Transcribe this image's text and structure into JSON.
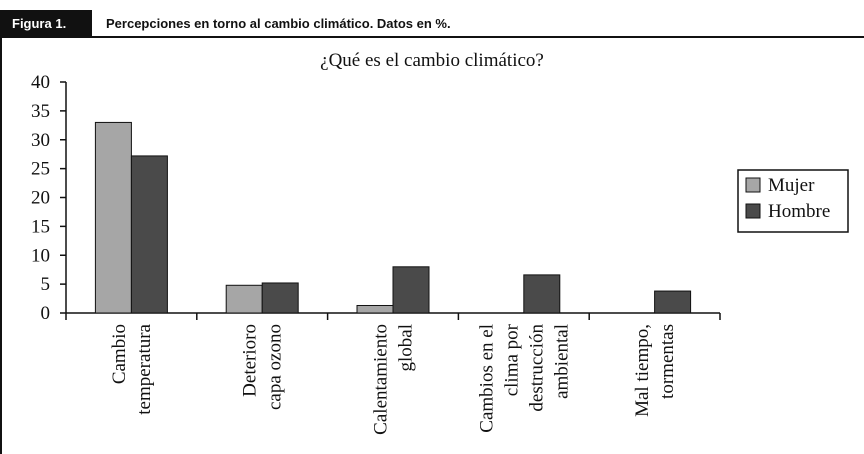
{
  "header": {
    "label": "Figura 1.",
    "title": "Percepciones en torno al cambio climático. Datos en %."
  },
  "chart_data": {
    "type": "bar",
    "title": "¿Qué es el cambio climático?",
    "categories": [
      [
        "Cambio",
        "temperatura"
      ],
      [
        "Deterioro",
        "capa ozono"
      ],
      [
        "Calentamiento",
        "global"
      ],
      [
        "Cambios en el",
        "clima por",
        "destrucción",
        "ambiental"
      ],
      [
        "Mal tiempo,",
        "tormentas"
      ]
    ],
    "series": [
      {
        "name": "Mujer",
        "color": "#a6a6a6",
        "values": [
          33,
          4.8,
          1.3,
          0,
          0
        ]
      },
      {
        "name": "Hombre",
        "color": "#4a4a4a",
        "values": [
          27.2,
          5.2,
          8,
          6.6,
          3.8
        ]
      }
    ],
    "ylim": [
      0,
      40
    ],
    "yticks": [
      0,
      5,
      10,
      15,
      20,
      25,
      30,
      35,
      40
    ],
    "legend": "right"
  }
}
